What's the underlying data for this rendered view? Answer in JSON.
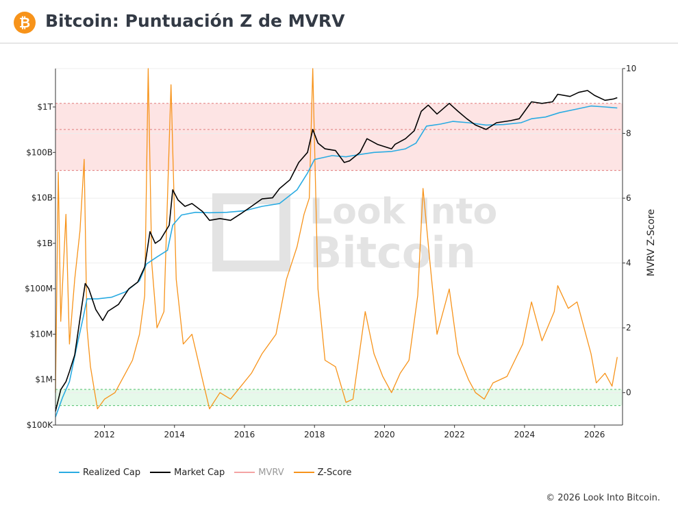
{
  "page": {
    "title": "Bitcoin: Puntuación Z de MVRV",
    "logo_icon": "bitcoin-logo-icon",
    "credit": "© 2026 Look Into Bitcoin.",
    "watermark": "Look Into Bitcoin"
  },
  "colors": {
    "realized_cap": "#29abe2",
    "market_cap": "#000000",
    "mvrv": "#f4a3a3",
    "zscore": "#f7931a",
    "top_band": "#fde4e4",
    "bottom_band": "#e6f9ea"
  },
  "chart_data": {
    "type": "line",
    "x_ticks": [
      "2012",
      "2014",
      "2016",
      "2018",
      "2020",
      "2022",
      "2024",
      "2026"
    ],
    "x_range": [
      2010.6,
      2026.8
    ],
    "left_axis": {
      "scale": "log",
      "range": [
        100000,
        7000000000000
      ],
      "ticks": [
        {
          "value": 1000000000000,
          "label": "$1T"
        },
        {
          "value": 100000000000,
          "label": "$100B"
        },
        {
          "value": 10000000000,
          "label": "$10B"
        },
        {
          "value": 1000000000,
          "label": "$1B"
        },
        {
          "value": 100000000,
          "label": "$100M"
        },
        {
          "value": 10000000,
          "label": "$10M"
        },
        {
          "value": 1000000,
          "label": "$1M"
        },
        {
          "value": 100000,
          "label": "$100K"
        }
      ]
    },
    "right_axis": {
      "label": "MVRV Z-Score",
      "range": [
        -1,
        10
      ],
      "ticks": [
        10,
        8,
        6,
        4,
        2,
        0
      ]
    },
    "bands": [
      {
        "axis": "left",
        "from": 40000000000,
        "to": 1200000000000,
        "mid": 320000000000
      },
      {
        "axis": "right",
        "from": -0.4,
        "to": 0.1
      }
    ],
    "legend": [
      {
        "name": "Realized Cap",
        "color": "#29abe2",
        "dim": false
      },
      {
        "name": "Market Cap",
        "color": "#000000",
        "dim": false
      },
      {
        "name": "MVRV",
        "color": "#f4a3a3",
        "dim": true
      },
      {
        "name": "Z-Score",
        "color": "#f7931a",
        "dim": false
      }
    ],
    "series": [
      {
        "name": "Market Cap",
        "axis": "left",
        "points": [
          [
            2010.6,
            200000
          ],
          [
            2010.75,
            600000
          ],
          [
            2010.9,
            900000
          ],
          [
            2011.0,
            1500000
          ],
          [
            2011.15,
            3500000
          ],
          [
            2011.35,
            40000000
          ],
          [
            2011.45,
            130000000
          ],
          [
            2011.55,
            100000000
          ],
          [
            2011.75,
            35000000
          ],
          [
            2011.95,
            20000000
          ],
          [
            2012.1,
            32000000
          ],
          [
            2012.4,
            45000000
          ],
          [
            2012.7,
            100000000
          ],
          [
            2012.95,
            140000000
          ],
          [
            2013.15,
            300000000
          ],
          [
            2013.3,
            1800000000
          ],
          [
            2013.45,
            1000000000
          ],
          [
            2013.6,
            1200000000
          ],
          [
            2013.85,
            2500000000
          ],
          [
            2013.95,
            15000000000
          ],
          [
            2014.1,
            9000000000
          ],
          [
            2014.3,
            6500000000
          ],
          [
            2014.5,
            7500000000
          ],
          [
            2014.8,
            5000000000
          ],
          [
            2015.0,
            3200000000
          ],
          [
            2015.3,
            3500000000
          ],
          [
            2015.6,
            3200000000
          ],
          [
            2015.9,
            4500000000
          ],
          [
            2016.2,
            6500000000
          ],
          [
            2016.5,
            9500000000
          ],
          [
            2016.8,
            10000000000
          ],
          [
            2017.0,
            16000000000
          ],
          [
            2017.3,
            25000000000
          ],
          [
            2017.55,
            60000000000
          ],
          [
            2017.8,
            100000000000
          ],
          [
            2017.95,
            320000000000
          ],
          [
            2018.1,
            160000000000
          ],
          [
            2018.3,
            120000000000
          ],
          [
            2018.6,
            110000000000
          ],
          [
            2018.85,
            60000000000
          ],
          [
            2019.0,
            65000000000
          ],
          [
            2019.3,
            100000000000
          ],
          [
            2019.5,
            200000000000
          ],
          [
            2019.8,
            150000000000
          ],
          [
            2020.2,
            120000000000
          ],
          [
            2020.3,
            150000000000
          ],
          [
            2020.6,
            200000000000
          ],
          [
            2020.85,
            300000000000
          ],
          [
            2021.05,
            800000000000
          ],
          [
            2021.25,
            1100000000000
          ],
          [
            2021.5,
            700000000000
          ],
          [
            2021.85,
            1200000000000
          ],
          [
            2022.1,
            800000000000
          ],
          [
            2022.35,
            550000000000
          ],
          [
            2022.6,
            400000000000
          ],
          [
            2022.9,
            320000000000
          ],
          [
            2023.2,
            450000000000
          ],
          [
            2023.6,
            500000000000
          ],
          [
            2023.85,
            550000000000
          ],
          [
            2024.2,
            1300000000000
          ],
          [
            2024.5,
            1200000000000
          ],
          [
            2024.8,
            1300000000000
          ],
          [
            2024.95,
            1900000000000
          ],
          [
            2025.3,
            1700000000000
          ],
          [
            2025.55,
            2100000000000
          ],
          [
            2025.8,
            2300000000000
          ],
          [
            2026.0,
            1800000000000
          ],
          [
            2026.3,
            1400000000000
          ],
          [
            2026.55,
            1500000000000
          ],
          [
            2026.65,
            1600000000000
          ]
        ]
      },
      {
        "name": "Realized Cap",
        "axis": "left",
        "points": [
          [
            2010.6,
            150000
          ],
          [
            2010.8,
            400000
          ],
          [
            2011.0,
            900000
          ],
          [
            2011.2,
            5000000
          ],
          [
            2011.4,
            25000000
          ],
          [
            2011.5,
            60000000
          ],
          [
            2011.8,
            60000000
          ],
          [
            2012.2,
            65000000
          ],
          [
            2012.6,
            85000000
          ],
          [
            2013.0,
            150000000
          ],
          [
            2013.2,
            350000000
          ],
          [
            2013.5,
            500000000
          ],
          [
            2013.8,
            700000000
          ],
          [
            2013.95,
            2500000000
          ],
          [
            2014.2,
            4200000000
          ],
          [
            2014.6,
            4800000000
          ],
          [
            2015.0,
            4700000000
          ],
          [
            2015.5,
            4800000000
          ],
          [
            2016.0,
            5200000000
          ],
          [
            2016.5,
            6500000000
          ],
          [
            2017.0,
            7500000000
          ],
          [
            2017.5,
            15000000000
          ],
          [
            2017.8,
            35000000000
          ],
          [
            2018.0,
            70000000000
          ],
          [
            2018.5,
            85000000000
          ],
          [
            2018.9,
            80000000000
          ],
          [
            2019.3,
            90000000000
          ],
          [
            2019.7,
            100000000000
          ],
          [
            2020.2,
            105000000000
          ],
          [
            2020.6,
            120000000000
          ],
          [
            2020.9,
            160000000000
          ],
          [
            2021.2,
            380000000000
          ],
          [
            2021.6,
            420000000000
          ],
          [
            2021.95,
            480000000000
          ],
          [
            2022.4,
            450000000000
          ],
          [
            2022.9,
            400000000000
          ],
          [
            2023.4,
            410000000000
          ],
          [
            2023.9,
            450000000000
          ],
          [
            2024.2,
            550000000000
          ],
          [
            2024.6,
            600000000000
          ],
          [
            2025.0,
            750000000000
          ],
          [
            2025.5,
            900000000000
          ],
          [
            2025.9,
            1050000000000
          ],
          [
            2026.3,
            1000000000000
          ],
          [
            2026.65,
            950000000000
          ]
        ]
      },
      {
        "name": "Z-Score",
        "axis": "right",
        "points": [
          [
            2010.6,
            0.0
          ],
          [
            2010.68,
            6.8
          ],
          [
            2010.75,
            2.2
          ],
          [
            2010.9,
            5.5
          ],
          [
            2011.0,
            1.5
          ],
          [
            2011.15,
            3.5
          ],
          [
            2011.3,
            5.0
          ],
          [
            2011.42,
            7.2
          ],
          [
            2011.5,
            2.0
          ],
          [
            2011.6,
            0.8
          ],
          [
            2011.8,
            -0.5
          ],
          [
            2012.0,
            -0.2
          ],
          [
            2012.3,
            0.0
          ],
          [
            2012.6,
            0.6
          ],
          [
            2012.8,
            1.0
          ],
          [
            2013.0,
            1.8
          ],
          [
            2013.15,
            3.0
          ],
          [
            2013.25,
            10.0
          ],
          [
            2013.35,
            4.0
          ],
          [
            2013.5,
            2.0
          ],
          [
            2013.7,
            2.5
          ],
          [
            2013.9,
            9.5
          ],
          [
            2014.05,
            3.5
          ],
          [
            2014.25,
            1.5
          ],
          [
            2014.5,
            1.8
          ],
          [
            2014.8,
            0.4
          ],
          [
            2015.0,
            -0.5
          ],
          [
            2015.3,
            0.0
          ],
          [
            2015.6,
            -0.2
          ],
          [
            2015.9,
            0.2
          ],
          [
            2016.2,
            0.6
          ],
          [
            2016.5,
            1.2
          ],
          [
            2016.9,
            1.8
          ],
          [
            2017.2,
            3.5
          ],
          [
            2017.5,
            4.5
          ],
          [
            2017.7,
            5.5
          ],
          [
            2017.85,
            6.0
          ],
          [
            2017.95,
            10.0
          ],
          [
            2018.1,
            3.2
          ],
          [
            2018.3,
            1.0
          ],
          [
            2018.6,
            0.8
          ],
          [
            2018.9,
            -0.3
          ],
          [
            2019.1,
            -0.2
          ],
          [
            2019.45,
            2.5
          ],
          [
            2019.7,
            1.2
          ],
          [
            2019.95,
            0.5
          ],
          [
            2020.2,
            0.0
          ],
          [
            2020.45,
            0.6
          ],
          [
            2020.7,
            1.0
          ],
          [
            2020.95,
            3.0
          ],
          [
            2021.1,
            6.3
          ],
          [
            2021.3,
            4.0
          ],
          [
            2021.5,
            1.8
          ],
          [
            2021.85,
            3.2
          ],
          [
            2022.1,
            1.2
          ],
          [
            2022.4,
            0.4
          ],
          [
            2022.6,
            0.0
          ],
          [
            2022.85,
            -0.2
          ],
          [
            2023.1,
            0.3
          ],
          [
            2023.5,
            0.5
          ],
          [
            2023.95,
            1.5
          ],
          [
            2024.2,
            2.8
          ],
          [
            2024.5,
            1.6
          ],
          [
            2024.85,
            2.5
          ],
          [
            2024.95,
            3.3
          ],
          [
            2025.25,
            2.6
          ],
          [
            2025.5,
            2.8
          ],
          [
            2025.7,
            2.0
          ],
          [
            2025.9,
            1.2
          ],
          [
            2026.05,
            0.3
          ],
          [
            2026.3,
            0.6
          ],
          [
            2026.5,
            0.2
          ],
          [
            2026.65,
            1.1
          ]
        ]
      }
    ]
  }
}
